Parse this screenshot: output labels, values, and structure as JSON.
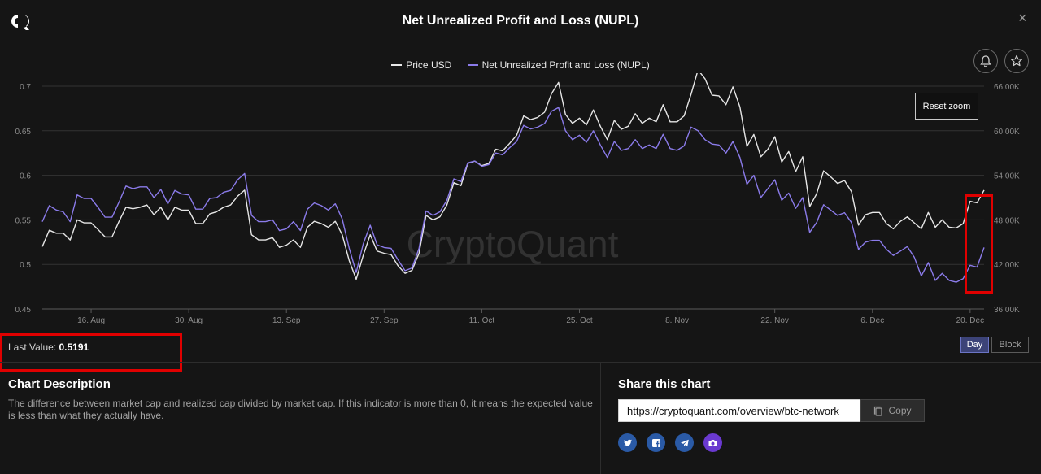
{
  "window": {
    "title": "Net Unrealized Profit and Loss (NUPL)"
  },
  "icons": {
    "logo": "cryptoquant-logo",
    "close": "close-icon",
    "bell": "bell-icon",
    "star": "star-icon",
    "copy": "copy-icon"
  },
  "close_label": "×",
  "legend": [
    {
      "name": "Price USD",
      "color": "#e8e8e8"
    },
    {
      "name": "Net Unrealized Profit and Loss (NUPL)",
      "color": "#8b7bea"
    }
  ],
  "watermark": "CryptoQuant",
  "reset_zoom": "Reset zoom",
  "last_value": {
    "label": "Last Value:",
    "value": "0.5191"
  },
  "toggles": {
    "day": "Day",
    "block": "Block",
    "selected": "Day"
  },
  "description": {
    "title": "Chart Description",
    "text": "The difference between market cap and realized cap divided by market cap. If this indicator is more than 0, it means the expected value is less than what they actually have."
  },
  "share": {
    "title": "Share this chart",
    "url": "https://cryptoquant.com/overview/btc-network",
    "copy_label": "Copy",
    "socials": [
      "twitter-icon",
      "facebook-icon",
      "telegram-icon",
      "camera-icon"
    ]
  },
  "highlight_color": "#e00000",
  "chart_data": {
    "type": "line",
    "x_ticks": [
      "16. Aug",
      "30. Aug",
      "13. Sep",
      "27. Sep",
      "11. Oct",
      "25. Oct",
      "8. Nov",
      "22. Nov",
      "6. Dec",
      "20. Dec"
    ],
    "y_left": {
      "ticks": [
        "0.7",
        "0.65",
        "0.6",
        "0.55",
        "0.5",
        "0.45"
      ],
      "range": [
        0.45,
        0.7
      ]
    },
    "y_right": {
      "ticks": [
        "66.00K",
        "60.00K",
        "54.00K",
        "48.00K",
        "42.00K",
        "36.00K"
      ],
      "range": [
        36000,
        66000
      ]
    },
    "grid": true,
    "legend_position": "top-center",
    "series": [
      {
        "name": "Price USD",
        "axis": "right",
        "color": "#e6e6e6",
        "values": [
          44400,
          46600,
          46200,
          46200,
          45300,
          48000,
          47600,
          47600,
          46700,
          45700,
          45700,
          47800,
          49700,
          49500,
          49700,
          50000,
          48700,
          49700,
          48000,
          49700,
          49300,
          49300,
          47500,
          47500,
          48800,
          49100,
          49700,
          50000,
          51200,
          52000,
          46000,
          45300,
          45300,
          45600,
          44300,
          44600,
          45300,
          44300,
          47000,
          47800,
          47500,
          47000,
          47800,
          46000,
          42500,
          40000,
          43200,
          46000,
          43800,
          43500,
          43300,
          41800,
          40800,
          41200,
          43500,
          48600,
          48000,
          48400,
          50000,
          53000,
          52600,
          55600,
          55900,
          55300,
          55600,
          57500,
          57300,
          58300,
          59400,
          62000,
          61500,
          61800,
          62500,
          65000,
          66500,
          62200,
          61000,
          61700,
          60800,
          62800,
          60600,
          58800,
          61400,
          60200,
          60600,
          62300,
          61000,
          61700,
          61200,
          63500,
          61200,
          61200,
          62000,
          64900,
          68200,
          67000,
          64800,
          64700,
          63500,
          65900,
          63200,
          57900,
          59500,
          56500,
          57500,
          59200,
          55800,
          57200,
          54500,
          56500,
          49800,
          51500,
          54600,
          53800,
          52900,
          53300,
          51800,
          47300,
          48700,
          49000,
          49000,
          47500,
          46800,
          47800,
          48400,
          47600,
          46800,
          49000,
          47000,
          48000,
          47000,
          46900,
          47500,
          50500,
          50300,
          52000
        ]
      },
      {
        "name": "Net Unrealized Profit and Loss (NUPL)",
        "axis": "left",
        "color": "#8b7bea",
        "values": [
          0.548,
          0.566,
          0.561,
          0.559,
          0.548,
          0.578,
          0.574,
          0.574,
          0.564,
          0.553,
          0.553,
          0.57,
          0.588,
          0.585,
          0.587,
          0.587,
          0.575,
          0.584,
          0.568,
          0.583,
          0.579,
          0.578,
          0.562,
          0.562,
          0.574,
          0.575,
          0.581,
          0.583,
          0.595,
          0.602,
          0.555,
          0.548,
          0.548,
          0.55,
          0.538,
          0.54,
          0.548,
          0.538,
          0.562,
          0.569,
          0.566,
          0.561,
          0.568,
          0.551,
          0.518,
          0.491,
          0.523,
          0.544,
          0.522,
          0.519,
          0.518,
          0.505,
          0.493,
          0.496,
          0.518,
          0.56,
          0.555,
          0.559,
          0.572,
          0.596,
          0.593,
          0.614,
          0.616,
          0.61,
          0.612,
          0.625,
          0.623,
          0.631,
          0.638,
          0.656,
          0.652,
          0.654,
          0.658,
          0.672,
          0.676,
          0.65,
          0.64,
          0.645,
          0.637,
          0.65,
          0.634,
          0.62,
          0.638,
          0.628,
          0.63,
          0.64,
          0.63,
          0.634,
          0.63,
          0.646,
          0.63,
          0.628,
          0.633,
          0.654,
          0.65,
          0.64,
          0.635,
          0.634,
          0.625,
          0.638,
          0.62,
          0.59,
          0.6,
          0.575,
          0.585,
          0.595,
          0.572,
          0.58,
          0.563,
          0.575,
          0.536,
          0.547,
          0.567,
          0.561,
          0.555,
          0.558,
          0.547,
          0.517,
          0.525,
          0.527,
          0.527,
          0.517,
          0.51,
          0.515,
          0.52,
          0.508,
          0.487,
          0.502,
          0.482,
          0.49,
          0.482,
          0.48,
          0.484,
          0.499,
          0.497,
          0.519
        ]
      }
    ]
  }
}
